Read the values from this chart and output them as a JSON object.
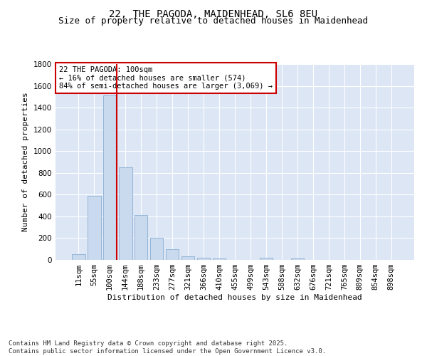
{
  "title_line1": "22, THE PAGODA, MAIDENHEAD, SL6 8EU",
  "title_line2": "Size of property relative to detached houses in Maidenhead",
  "xlabel": "Distribution of detached houses by size in Maidenhead",
  "ylabel": "Number of detached properties",
  "categories": [
    "11sqm",
    "55sqm",
    "100sqm",
    "144sqm",
    "188sqm",
    "233sqm",
    "277sqm",
    "321sqm",
    "366sqm",
    "410sqm",
    "455sqm",
    "499sqm",
    "543sqm",
    "588sqm",
    "632sqm",
    "676sqm",
    "721sqm",
    "765sqm",
    "809sqm",
    "854sqm",
    "898sqm"
  ],
  "values": [
    50,
    590,
    1510,
    850,
    410,
    200,
    95,
    30,
    20,
    15,
    0,
    0,
    20,
    0,
    15,
    0,
    0,
    0,
    0,
    0,
    0
  ],
  "bar_color": "#c9d9ee",
  "bar_edge_color": "#8aafd4",
  "vline_x_index": 2,
  "vline_color": "#cc0000",
  "annotation_text": "22 THE PAGODA: 100sqm\n← 16% of detached houses are smaller (574)\n84% of semi-detached houses are larger (3,069) →",
  "annotation_box_color": "#ffffff",
  "annotation_box_edge": "#cc0000",
  "ylim": [
    0,
    1800
  ],
  "yticks": [
    0,
    200,
    400,
    600,
    800,
    1000,
    1200,
    1400,
    1600,
    1800
  ],
  "background_color": "#dce6f5",
  "grid_color": "#ffffff",
  "footer_text": "Contains HM Land Registry data © Crown copyright and database right 2025.\nContains public sector information licensed under the Open Government Licence v3.0.",
  "title_fontsize": 10,
  "subtitle_fontsize": 9,
  "axis_label_fontsize": 8,
  "tick_fontsize": 7.5,
  "annotation_fontsize": 7.5,
  "footer_fontsize": 6.5
}
